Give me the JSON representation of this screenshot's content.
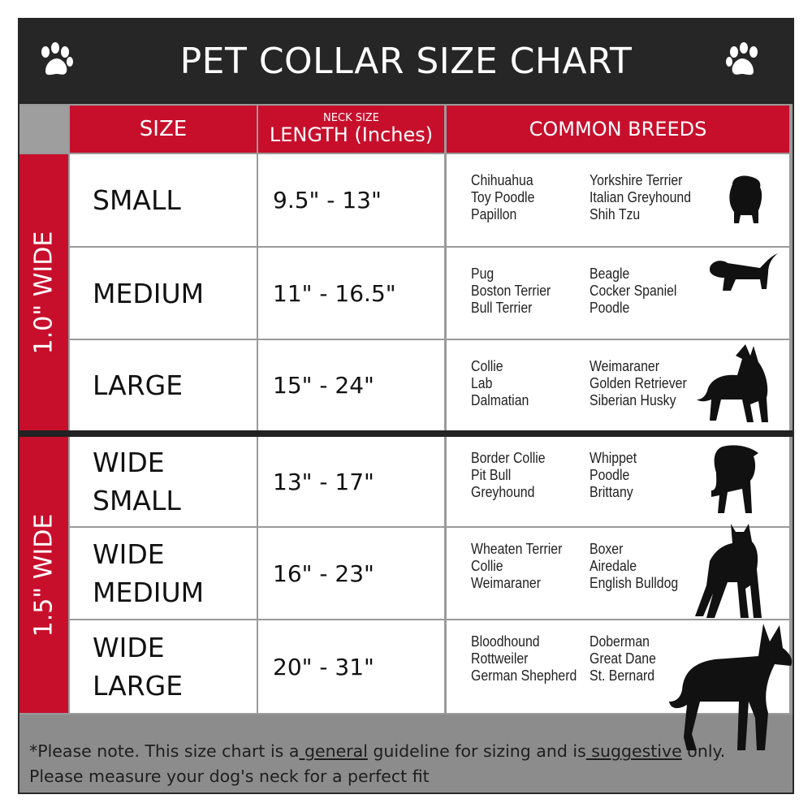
{
  "title": "PET COLLAR SIZE CHART",
  "header": {
    "size": "SIZE",
    "neck_small": "NECK SIZE",
    "length": "LENGTH (Inches)",
    "breeds": "COMMON BREEDS"
  },
  "groups": [
    {
      "label": "1.0\" WIDE"
    },
    {
      "label": "1.5\" WIDE"
    }
  ],
  "rows": [
    {
      "size1": "SMALL",
      "size2": "",
      "length": "9.5\" - 13\"",
      "col1": [
        "Chihuahua",
        "Toy Poodle",
        "Papillon"
      ],
      "col2": [
        "Yorkshire Terrier",
        "Italian Greyhound",
        "Shih Tzu"
      ],
      "icon": "small-dog-silhouette-icon"
    },
    {
      "size1": "MEDIUM",
      "size2": "",
      "length": "11\" - 16.5\"",
      "col1": [
        "Pug",
        "Boston Terrier",
        "Bull Terrier"
      ],
      "col2": [
        "Beagle",
        "Cocker Spaniel",
        "Poodle"
      ],
      "icon": "medium-dog-silhouette-icon"
    },
    {
      "size1": "LARGE",
      "size2": "",
      "length": "15\" - 24\"",
      "col1": [
        "Collie",
        "Lab",
        "Dalmatian"
      ],
      "col2": [
        "Weimaraner",
        "Golden Retriever",
        "Siberian Husky"
      ],
      "icon": "large-dog-silhouette-icon"
    },
    {
      "size1": "WIDE",
      "size2": "SMALL",
      "length": "13\" - 17\"",
      "col1": [
        "Border Collie",
        "Pit Bull",
        "Greyhound"
      ],
      "col2": [
        "Whippet",
        "Poodle",
        "Brittany"
      ],
      "icon": "bulldog-silhouette-icon"
    },
    {
      "size1": "WIDE",
      "size2": "MEDIUM",
      "length": "16\" - 23\"",
      "col1": [
        "Wheaten Terrier",
        "Collie",
        "Weimaraner"
      ],
      "col2": [
        "Boxer",
        "Airedale",
        "English Bulldog"
      ],
      "icon": "pitbull-silhouette-icon"
    },
    {
      "size1": "WIDE",
      "size2": "LARGE",
      "length": "20\" - 31\"",
      "col1": [
        "Bloodhound",
        "Rottweiler",
        "German Shepherd"
      ],
      "col2": [
        "Doberman",
        "Great Dane",
        "St. Bernard"
      ],
      "icon": "doberman-silhouette-icon"
    }
  ],
  "footer": {
    "p1": "*Please note. This size chart is a",
    "u1": " general",
    "p2": " guideline for sizing and is",
    "u2": " suggestive",
    "p3": " only.",
    "line2": "Please measure your dog's neck for a perfect fit"
  },
  "colors": {
    "accent_red": "#c70f2c",
    "title_bg": "#262626",
    "footer_bg": "#8c8c8c"
  }
}
